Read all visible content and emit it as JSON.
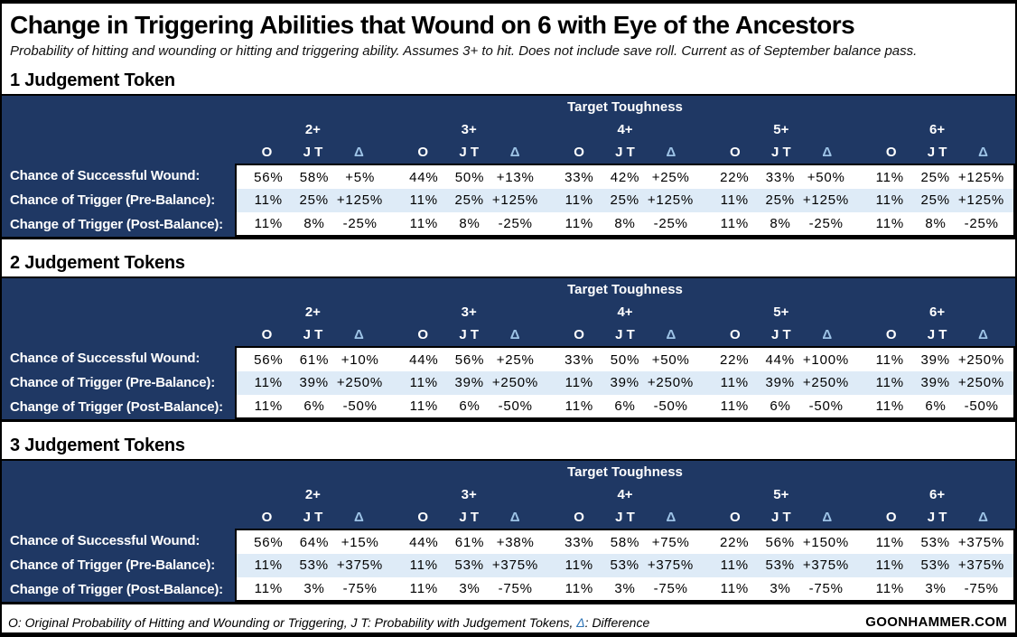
{
  "page": {
    "title": "Change in Triggering Abilities that Wound on 6 with Eye of the Ancestors",
    "subtitle": "Probability of hitting and wounding or hitting and triggering ability. Assumes 3+ to hit. Does not include save roll. Current as of September balance pass.",
    "footer_legend_before_delta": "O: Original Probability of Hitting and Wounding or Triggering, J T: Probability with Judgement Tokens, ",
    "footer_delta": "Δ",
    "footer_legend_after_delta": ": Difference",
    "brand": "GOONHAMMER.COM"
  },
  "colors": {
    "navy_header": "#1F3864",
    "banded_row": "#DEEBF7",
    "delta_header_text": "#9DC3E6",
    "delta_footer_text": "#2E74B5",
    "border": "#000000"
  },
  "chart_data": [
    {
      "type": "table",
      "title": "1 Judgement Token",
      "header_span": "Target Toughness",
      "column_groups": [
        "2+",
        "3+",
        "4+",
        "5+",
        "6+"
      ],
      "sub_columns": [
        "O",
        "J T",
        "Δ"
      ],
      "rows": [
        {
          "label": "Chance of Successful Wound:",
          "values": [
            [
              "56%",
              "58%",
              "+5%"
            ],
            [
              "44%",
              "50%",
              "+13%"
            ],
            [
              "33%",
              "42%",
              "+25%"
            ],
            [
              "22%",
              "33%",
              "+50%"
            ],
            [
              "11%",
              "25%",
              "+125%"
            ]
          ]
        },
        {
          "label": "Chance of Trigger (Pre-Balance):",
          "values": [
            [
              "11%",
              "25%",
              "+125%"
            ],
            [
              "11%",
              "25%",
              "+125%"
            ],
            [
              "11%",
              "25%",
              "+125%"
            ],
            [
              "11%",
              "25%",
              "+125%"
            ],
            [
              "11%",
              "25%",
              "+125%"
            ]
          ]
        },
        {
          "label": "Change of Trigger (Post-Balance):",
          "values": [
            [
              "11%",
              "8%",
              "-25%"
            ],
            [
              "11%",
              "8%",
              "-25%"
            ],
            [
              "11%",
              "8%",
              "-25%"
            ],
            [
              "11%",
              "8%",
              "-25%"
            ],
            [
              "11%",
              "8%",
              "-25%"
            ]
          ]
        }
      ]
    },
    {
      "type": "table",
      "title": "2 Judgement Tokens",
      "header_span": "Target Toughness",
      "column_groups": [
        "2+",
        "3+",
        "4+",
        "5+",
        "6+"
      ],
      "sub_columns": [
        "O",
        "J T",
        "Δ"
      ],
      "rows": [
        {
          "label": "Chance of Successful Wound:",
          "values": [
            [
              "56%",
              "61%",
              "+10%"
            ],
            [
              "44%",
              "56%",
              "+25%"
            ],
            [
              "33%",
              "50%",
              "+50%"
            ],
            [
              "22%",
              "44%",
              "+100%"
            ],
            [
              "11%",
              "39%",
              "+250%"
            ]
          ]
        },
        {
          "label": "Chance of Trigger (Pre-Balance):",
          "values": [
            [
              "11%",
              "39%",
              "+250%"
            ],
            [
              "11%",
              "39%",
              "+250%"
            ],
            [
              "11%",
              "39%",
              "+250%"
            ],
            [
              "11%",
              "39%",
              "+250%"
            ],
            [
              "11%",
              "39%",
              "+250%"
            ]
          ]
        },
        {
          "label": "Change of Trigger (Post-Balance):",
          "values": [
            [
              "11%",
              "6%",
              "-50%"
            ],
            [
              "11%",
              "6%",
              "-50%"
            ],
            [
              "11%",
              "6%",
              "-50%"
            ],
            [
              "11%",
              "6%",
              "-50%"
            ],
            [
              "11%",
              "6%",
              "-50%"
            ]
          ]
        }
      ]
    },
    {
      "type": "table",
      "title": "3 Judgement Tokens",
      "header_span": "Target Toughness",
      "column_groups": [
        "2+",
        "3+",
        "4+",
        "5+",
        "6+"
      ],
      "sub_columns": [
        "O",
        "J T",
        "Δ"
      ],
      "rows": [
        {
          "label": "Chance of Successful Wound:",
          "values": [
            [
              "56%",
              "64%",
              "+15%"
            ],
            [
              "44%",
              "61%",
              "+38%"
            ],
            [
              "33%",
              "58%",
              "+75%"
            ],
            [
              "22%",
              "56%",
              "+150%"
            ],
            [
              "11%",
              "53%",
              "+375%"
            ]
          ]
        },
        {
          "label": "Chance of Trigger (Pre-Balance):",
          "values": [
            [
              "11%",
              "53%",
              "+375%"
            ],
            [
              "11%",
              "53%",
              "+375%"
            ],
            [
              "11%",
              "53%",
              "+375%"
            ],
            [
              "11%",
              "53%",
              "+375%"
            ],
            [
              "11%",
              "53%",
              "+375%"
            ]
          ]
        },
        {
          "label": "Change of Trigger (Post-Balance):",
          "values": [
            [
              "11%",
              "3%",
              "-75%"
            ],
            [
              "11%",
              "3%",
              "-75%"
            ],
            [
              "11%",
              "3%",
              "-75%"
            ],
            [
              "11%",
              "3%",
              "-75%"
            ],
            [
              "11%",
              "3%",
              "-75%"
            ]
          ]
        }
      ]
    }
  ]
}
